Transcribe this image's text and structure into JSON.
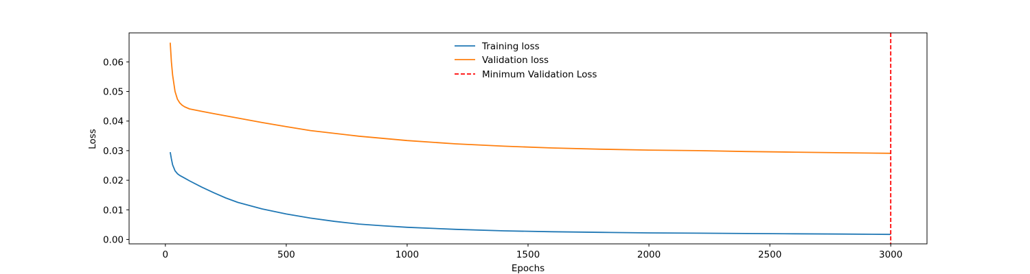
{
  "chart_data": {
    "type": "line",
    "title": "",
    "xlabel": "Epochs",
    "ylabel": "Loss",
    "xlim": [
      -150,
      3150
    ],
    "ylim": [
      -0.0015,
      0.0698
    ],
    "xticks": [
      0,
      500,
      1000,
      1500,
      2000,
      2500,
      3000
    ],
    "xtick_labels": [
      "0",
      "500",
      "1000",
      "1500",
      "2000",
      "2500",
      "3000"
    ],
    "yticks": [
      0.0,
      0.01,
      0.02,
      0.03,
      0.04,
      0.05,
      0.06
    ],
    "ytick_labels": [
      "0.00",
      "0.01",
      "0.02",
      "0.03",
      "0.04",
      "0.05",
      "0.06"
    ],
    "grid": false,
    "legend_position": "top-center",
    "series": [
      {
        "name": "Training loss",
        "color": "#1f77b4",
        "style": "solid",
        "x": [
          20,
          25,
          30,
          40,
          50,
          60,
          80,
          100,
          150,
          200,
          250,
          300,
          400,
          500,
          600,
          700,
          800,
          900,
          1000,
          1200,
          1400,
          1600,
          1800,
          2000,
          2200,
          2400,
          2600,
          2800,
          3000
        ],
        "y": [
          0.0295,
          0.0272,
          0.0252,
          0.0232,
          0.0222,
          0.0216,
          0.0207,
          0.0198,
          0.0177,
          0.0158,
          0.014,
          0.0125,
          0.0103,
          0.0086,
          0.0072,
          0.0061,
          0.0052,
          0.0046,
          0.0041,
          0.0034,
          0.0029,
          0.0026,
          0.0024,
          0.0022,
          0.0021,
          0.002,
          0.0019,
          0.0018,
          0.0017
        ]
      },
      {
        "name": "Validation loss",
        "color": "#ff7f0e",
        "style": "solid",
        "x": [
          20,
          25,
          30,
          40,
          50,
          60,
          70,
          80,
          100,
          150,
          200,
          300,
          400,
          500,
          600,
          800,
          1000,
          1200,
          1400,
          1600,
          1800,
          2000,
          2200,
          2400,
          2600,
          2800,
          3000
        ],
        "y": [
          0.0665,
          0.06,
          0.0555,
          0.05,
          0.0474,
          0.0461,
          0.0453,
          0.0448,
          0.0441,
          0.0433,
          0.0425,
          0.041,
          0.0395,
          0.0381,
          0.0368,
          0.0349,
          0.0334,
          0.0323,
          0.0315,
          0.0309,
          0.0305,
          0.0302,
          0.03,
          0.0297,
          0.0295,
          0.0293,
          0.0291
        ]
      }
    ],
    "vline": {
      "name": "Minimum Validation Loss",
      "x": 3000,
      "color": "#ff0000",
      "style": "dashed"
    }
  }
}
